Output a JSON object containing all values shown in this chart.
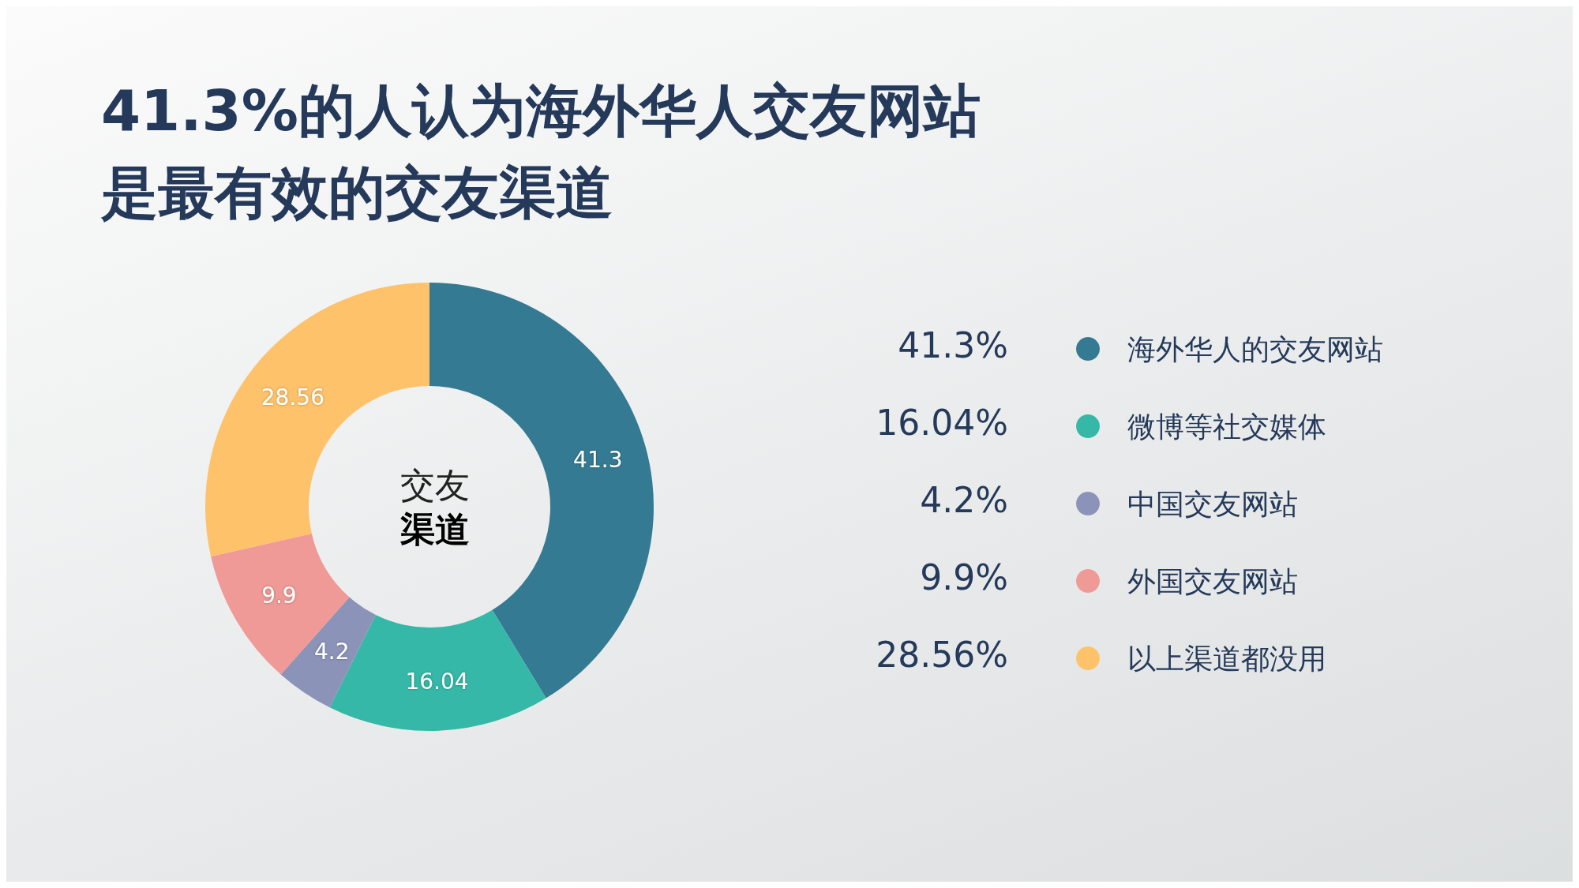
{
  "chart_data": {
    "type": "donut",
    "title": "41.3%的人认为海外华人交友网站是最有效的交友渠道",
    "categories": [
      "海外华人的交友网站",
      "微博等社交媒体",
      "中国交友网站",
      "外国交友网站",
      "以上渠道都没用"
    ],
    "values": [
      41.3,
      16.04,
      4.2,
      9.9,
      28.56
    ],
    "colors": [
      "#357a93",
      "#35b8a8",
      "#8c93b8",
      "#ef9a96",
      "#fdc26a"
    ],
    "data_labels": true,
    "legend": "right",
    "annotations": [
      "交友",
      "渠道",
      "41.3%",
      "16.04%",
      "4.2%",
      "9.9%",
      "28.56%"
    ]
  }
}
